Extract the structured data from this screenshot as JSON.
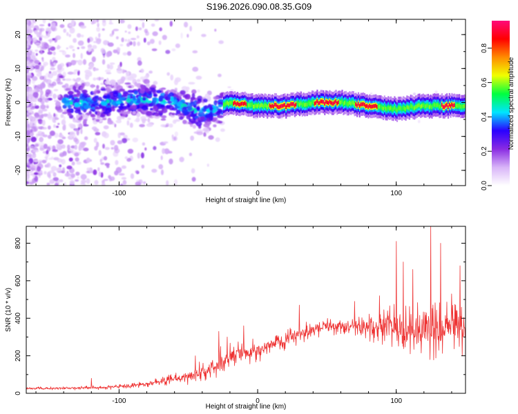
{
  "title": "S196.2026.090.08.35.G09",
  "chart_data": [
    {
      "type": "heatmap",
      "xlabel": "Height of straight line (km)",
      "ylabel": "Frequency (Hz)",
      "xlim": [
        -167,
        150
      ],
      "ylim": [
        -24.5,
        24.5
      ],
      "xticks": [
        "-100",
        "0",
        "100"
      ],
      "yticks": [
        "-20",
        "-10",
        "0",
        "10",
        "20"
      ],
      "colorbar": {
        "label": "Normalized spectral amplitude",
        "range": [
          0,
          0.96
        ],
        "ticks": [
          "0.0",
          "0.2",
          "0.4",
          "0.6",
          "0.8"
        ],
        "colors": [
          "#ffffff",
          "#d8b4f8",
          "#8a2be2",
          "#2a00ff",
          "#00e5ff",
          "#00ff40",
          "#f0ff00",
          "#ff8c00",
          "#ff0000",
          "#ff0a7a"
        ]
      },
      "ridge": {
        "description_points_km_hz": [
          [
            -140,
            0
          ],
          [
            -110,
            0
          ],
          [
            -80,
            1
          ],
          [
            -60,
            0
          ],
          [
            -40,
            -3
          ],
          [
            -30,
            -2
          ],
          [
            -20,
            0
          ],
          [
            0,
            -1
          ],
          [
            20,
            -1
          ],
          [
            40,
            0
          ],
          [
            60,
            0
          ],
          [
            80,
            -1
          ],
          [
            100,
            -2
          ],
          [
            120,
            -1
          ],
          [
            150,
            -1
          ]
        ],
        "peak_segments_km": [
          [
            -18,
            -8
          ],
          [
            8,
            28
          ],
          [
            40,
            58
          ],
          [
            70,
            86
          ],
          [
            132,
            142
          ]
        ]
      }
    },
    {
      "type": "line",
      "xlabel": "Height of straight line (km)",
      "ylabel": "SNR (10 * v/v)",
      "xlim": [
        -167,
        150
      ],
      "ylim": [
        0,
        890
      ],
      "xticks": [
        "-100",
        "0",
        "100"
      ],
      "yticks": [
        "0",
        "200",
        "400",
        "600",
        "800"
      ],
      "color": "#ee3333",
      "envelope": {
        "x": [
          -167,
          -120,
          -90,
          -70,
          -50,
          -35,
          -25,
          -15,
          0,
          15,
          30,
          50,
          70,
          80,
          95,
          110,
          125,
          140,
          150
        ],
        "mean": [
          25,
          30,
          40,
          60,
          90,
          130,
          170,
          210,
          230,
          270,
          320,
          360,
          360,
          350,
          360,
          340,
          330,
          360,
          330
        ],
        "spread": [
          12,
          14,
          18,
          30,
          50,
          80,
          90,
          90,
          70,
          60,
          60,
          55,
          60,
          90,
          140,
          180,
          200,
          160,
          150
        ]
      },
      "peaks": [
        [
          -120,
          80
        ],
        [
          -45,
          200
        ],
        [
          -28,
          330
        ],
        [
          -22,
          300
        ],
        [
          -10,
          360
        ],
        [
          30,
          470
        ],
        [
          70,
          490
        ],
        [
          88,
          520
        ],
        [
          100,
          810
        ],
        [
          105,
          700
        ],
        [
          112,
          660
        ],
        [
          125,
          890
        ],
        [
          132,
          800
        ],
        [
          140,
          530
        ],
        [
          146,
          680
        ]
      ]
    }
  ]
}
